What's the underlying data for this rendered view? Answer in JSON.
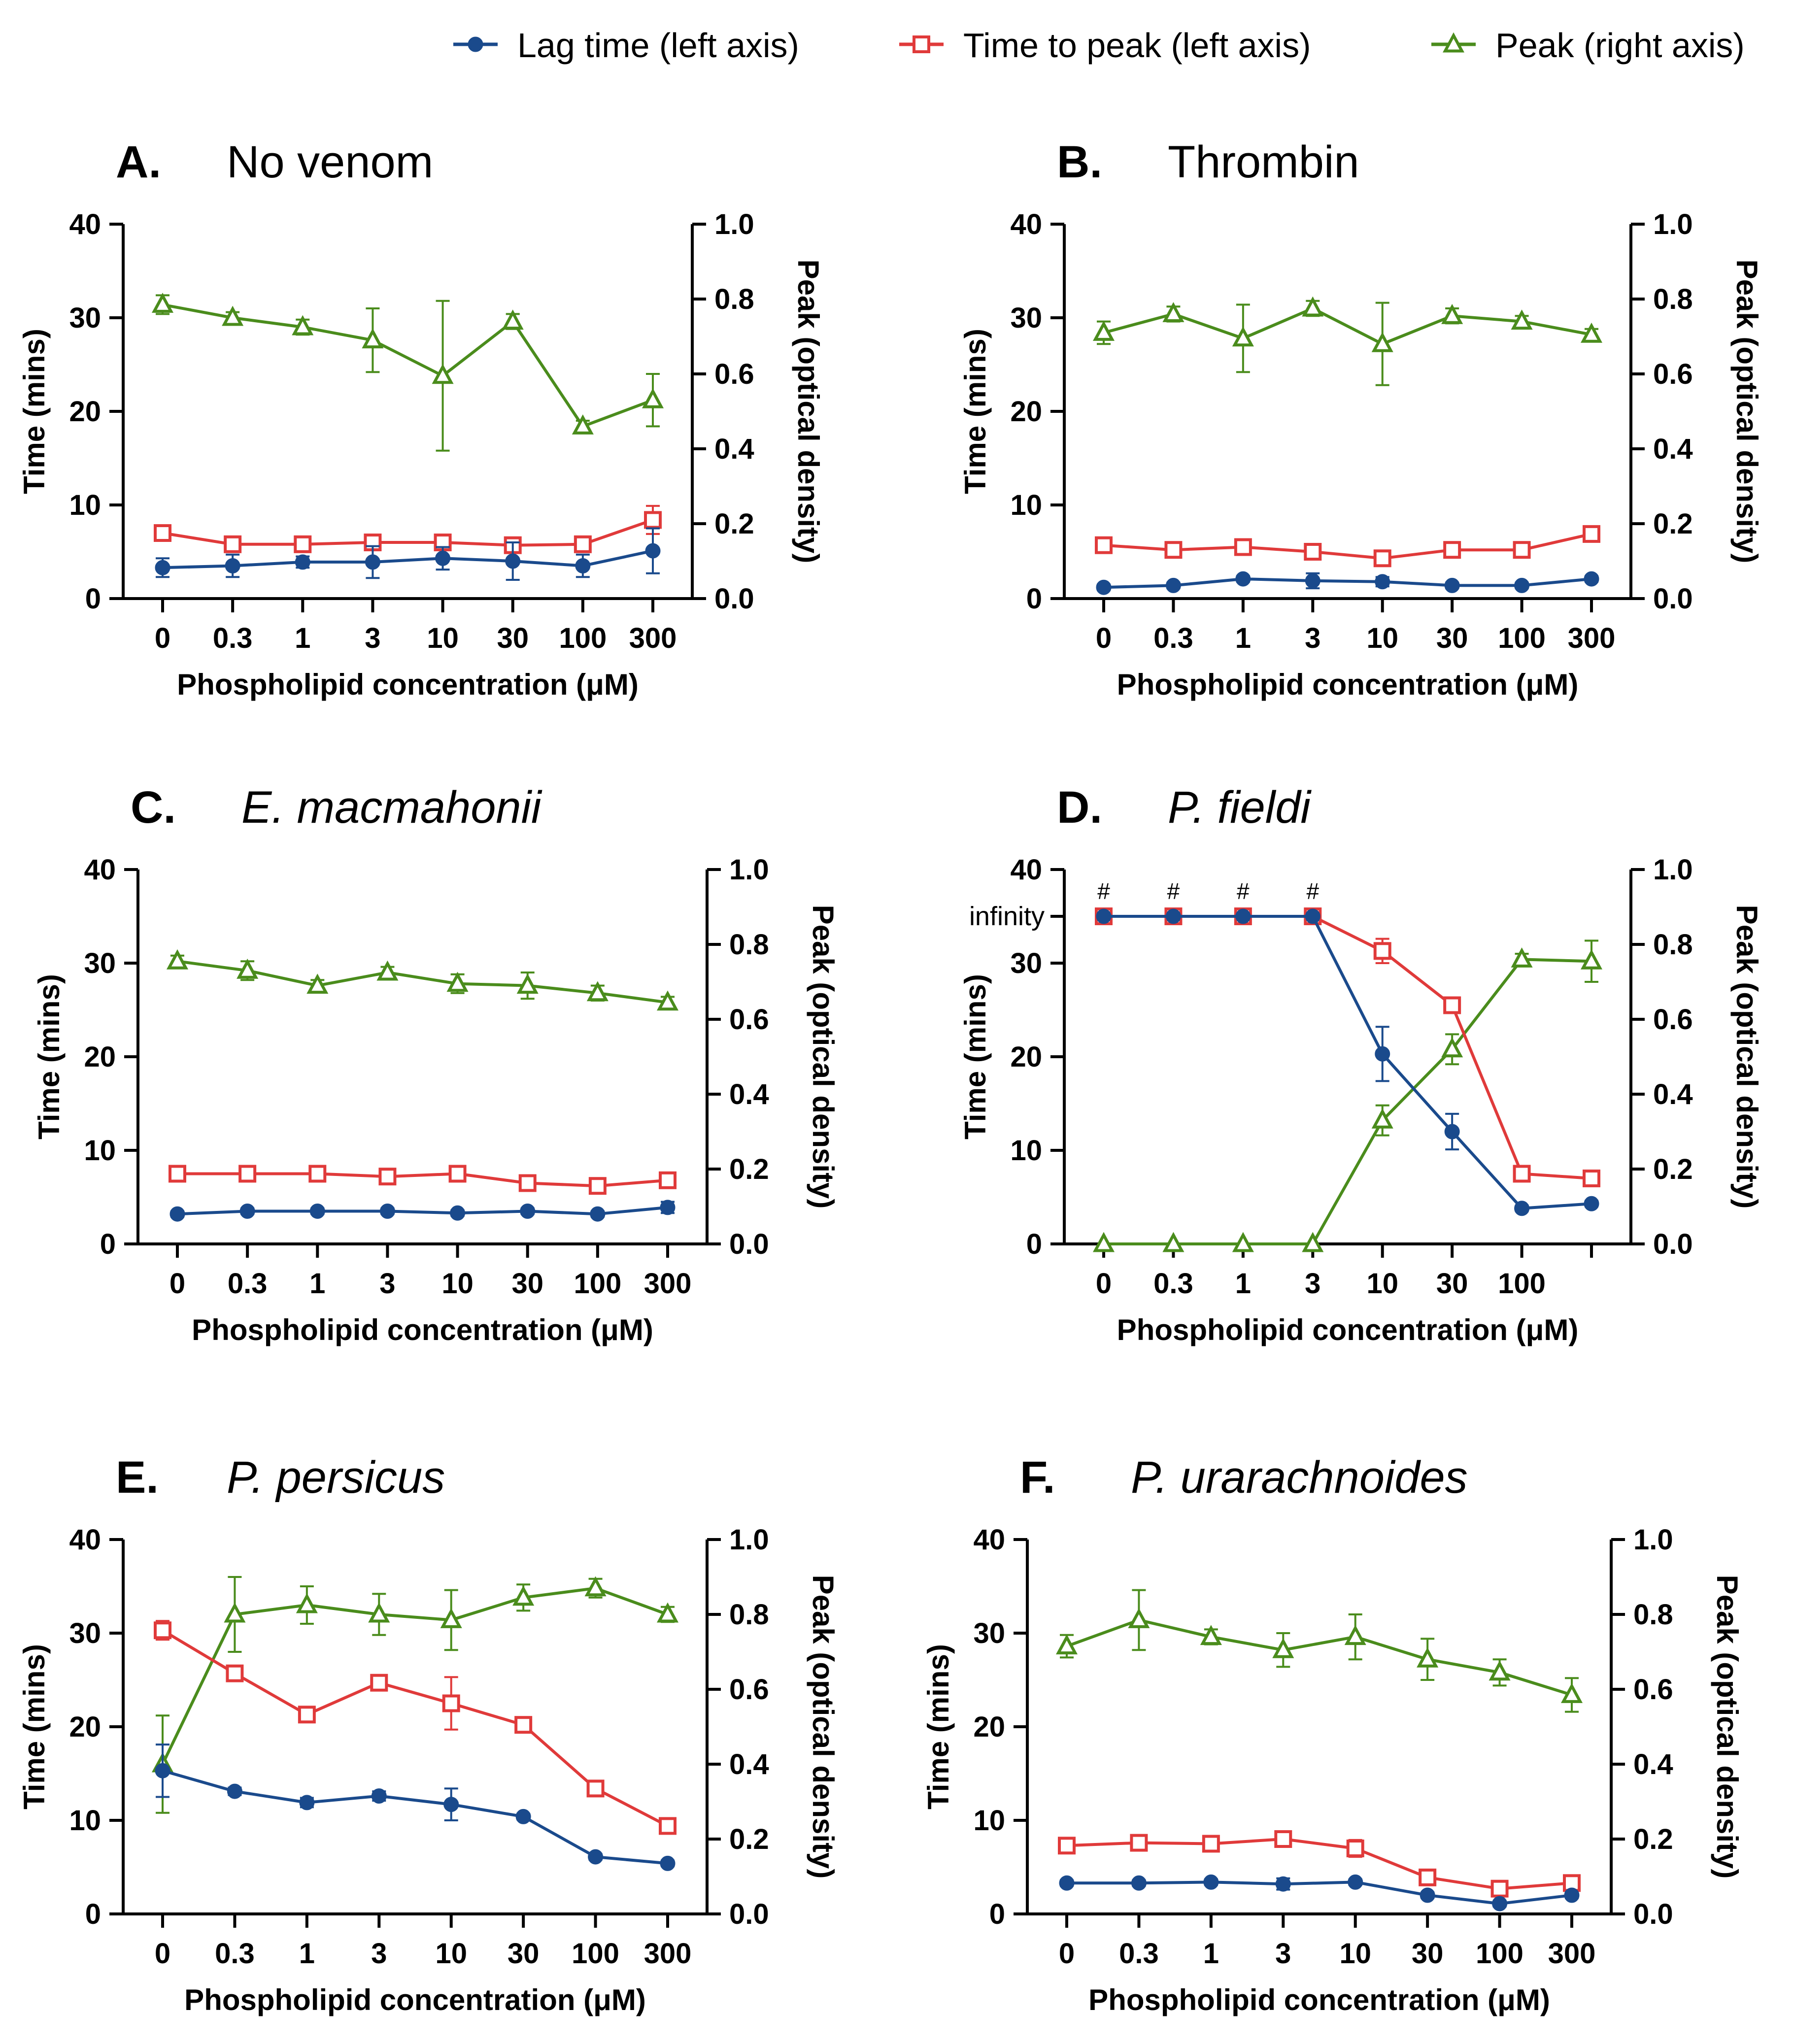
{
  "legend": {
    "items": [
      {
        "name": "Lag time (left axis)",
        "color": "#1a4a8c",
        "marker": "circle"
      },
      {
        "name": "Time to peak (left axis)",
        "color": "#e03a3a",
        "marker": "square"
      },
      {
        "name": "Peak (right axis)",
        "color": "#4a8c1c",
        "marker": "triangle"
      }
    ]
  },
  "colors": {
    "lag": "#1a4a8c",
    "ttp": "#e03a3a",
    "peak": "#4a8c1c",
    "axis": "#000000"
  },
  "shared": {
    "xlabel": "Phospholipid concentration (μM)",
    "ylabel_left": "Time (mins)",
    "ylabel_right": "Peak (optical density)",
    "ylim_left": [
      0,
      40
    ],
    "ylim_right": [
      0,
      1.0
    ],
    "left_ticks": [
      "0",
      "10",
      "20",
      "30",
      "40"
    ],
    "right_ticks": [
      "0.0",
      "0.2",
      "0.4",
      "0.6",
      "0.8",
      "1.0"
    ]
  },
  "chart_data": [
    {
      "type": "line",
      "letter": "A.",
      "title": "No venom",
      "italic": false,
      "categories": [
        "0",
        "0.3",
        "1",
        "3",
        "10",
        "30",
        "100",
        "300"
      ],
      "series": [
        {
          "name": "Lag time (left axis)",
          "axis": "left",
          "values": [
            3.3,
            3.5,
            3.9,
            3.9,
            4.3,
            4.0,
            3.5,
            5.1
          ],
          "errors": [
            1.0,
            1.2,
            0.6,
            1.7,
            1.2,
            2.0,
            1.2,
            2.4
          ]
        },
        {
          "name": "Time to peak (left axis)",
          "axis": "left",
          "values": [
            7.0,
            5.8,
            5.8,
            6.0,
            6.0,
            5.7,
            5.8,
            8.4
          ],
          "errors": [
            0.5,
            0.5,
            0.5,
            0.5,
            0.5,
            0.5,
            0.5,
            1.5
          ]
        },
        {
          "name": "Peak (right axis)",
          "axis": "right",
          "values": [
            0.785,
            0.75,
            0.725,
            0.69,
            0.595,
            0.74,
            0.46,
            0.53
          ],
          "errors": [
            0.025,
            0.015,
            0.02,
            0.085,
            0.2,
            0.02,
            0.015,
            0.07
          ]
        }
      ]
    },
    {
      "type": "line",
      "letter": "B.",
      "title": "Thrombin",
      "italic": false,
      "categories": [
        "0",
        "0.3",
        "1",
        "3",
        "10",
        "30",
        "100",
        "300"
      ],
      "series": [
        {
          "name": "Lag time (left axis)",
          "axis": "left",
          "values": [
            1.2,
            1.4,
            2.1,
            1.9,
            1.8,
            1.4,
            1.4,
            2.1
          ],
          "errors": [
            0.3,
            0.3,
            0.3,
            0.8,
            0.5,
            0.3,
            0.3,
            0.3
          ]
        },
        {
          "name": "Time to peak (left axis)",
          "axis": "left",
          "values": [
            5.7,
            5.2,
            5.5,
            5.0,
            4.3,
            5.2,
            5.2,
            6.9
          ],
          "errors": [
            0.5,
            0.5,
            0.5,
            0.5,
            0.8,
            0.5,
            0.5,
            0.5
          ]
        },
        {
          "name": "Peak (right axis)",
          "axis": "right",
          "values": [
            0.71,
            0.76,
            0.695,
            0.775,
            0.68,
            0.755,
            0.74,
            0.705
          ],
          "errors": [
            0.03,
            0.02,
            0.09,
            0.02,
            0.11,
            0.02,
            0.015,
            0.015
          ]
        }
      ]
    },
    {
      "type": "line",
      "letter": "C.",
      "title": "E. macmahonii",
      "italic": true,
      "categories": [
        "0",
        "0.3",
        "1",
        "3",
        "10",
        "30",
        "100",
        "300"
      ],
      "series": [
        {
          "name": "Lag time (left axis)",
          "axis": "left",
          "values": [
            3.2,
            3.5,
            3.5,
            3.5,
            3.3,
            3.5,
            3.2,
            3.9
          ],
          "errors": [
            0.3,
            0.3,
            0.3,
            0.3,
            0.3,
            0.3,
            0.3,
            0.6
          ]
        },
        {
          "name": "Time to peak (left axis)",
          "axis": "left",
          "values": [
            7.5,
            7.5,
            7.5,
            7.2,
            7.5,
            6.5,
            6.2,
            6.8
          ],
          "errors": [
            0.3,
            0.3,
            0.3,
            0.3,
            0.3,
            0.3,
            0.3,
            0.3
          ]
        },
        {
          "name": "Peak (right axis)",
          "axis": "right",
          "values": [
            0.755,
            0.73,
            0.69,
            0.725,
            0.695,
            0.69,
            0.67,
            0.645
          ],
          "errors": [
            0.015,
            0.025,
            0.015,
            0.015,
            0.025,
            0.035,
            0.02,
            0.015
          ]
        }
      ]
    },
    {
      "type": "line",
      "letter": "D.",
      "title": "P. fieldi",
      "italic": true,
      "categories": [
        "0",
        "0.3",
        "1",
        "3",
        "10",
        "30",
        "100",
        ""
      ],
      "infinity_label": "infinity",
      "infinity_value": 35,
      "hash_marks": [
        "#",
        "#",
        "#",
        "#"
      ],
      "series": [
        {
          "name": "Lag time (left axis)",
          "axis": "left",
          "values": [
            35,
            35,
            35,
            35,
            20.3,
            12.0,
            3.8,
            4.3
          ],
          "errors": [
            0,
            0,
            0,
            0,
            2.9,
            1.9,
            0.3,
            0.3
          ]
        },
        {
          "name": "Time to peak (left axis)",
          "axis": "left",
          "values": [
            35,
            35,
            35,
            35,
            31.3,
            25.5,
            7.5,
            7.0
          ],
          "errors": [
            0,
            0,
            0,
            0,
            1.3,
            0.5,
            0.3,
            0.3
          ]
        },
        {
          "name": "Peak (right axis)",
          "axis": "right",
          "values": [
            0.0,
            0.0,
            0.0,
            0.0,
            0.33,
            0.52,
            0.76,
            0.755
          ],
          "errors": [
            0,
            0,
            0,
            0,
            0.04,
            0.04,
            0.015,
            0.055
          ]
        }
      ]
    },
    {
      "type": "line",
      "letter": "E.",
      "title": "P. persicus",
      "italic": true,
      "categories": [
        "0",
        "0.3",
        "1",
        "3",
        "10",
        "30",
        "100",
        "300"
      ],
      "series": [
        {
          "name": "Lag time (left axis)",
          "axis": "left",
          "values": [
            15.3,
            13.1,
            11.9,
            12.6,
            11.7,
            10.4,
            6.1,
            5.4
          ],
          "errors": [
            2.8,
            0.4,
            0.5,
            0.5,
            1.7,
            0.3,
            0.3,
            0.3
          ]
        },
        {
          "name": "Time to peak (left axis)",
          "axis": "left",
          "values": [
            30.3,
            25.7,
            21.3,
            24.7,
            22.5,
            20.2,
            13.4,
            9.4
          ],
          "errors": [
            1.0,
            0.5,
            0.5,
            0.5,
            2.8,
            0.5,
            0.5,
            0.5
          ]
        },
        {
          "name": "Peak (right axis)",
          "axis": "right",
          "values": [
            0.4,
            0.8,
            0.825,
            0.8,
            0.785,
            0.845,
            0.87,
            0.8
          ],
          "errors": [
            0.13,
            0.1,
            0.05,
            0.055,
            0.08,
            0.035,
            0.025,
            0.02
          ]
        }
      ]
    },
    {
      "type": "line",
      "letter": "F.",
      "title": "P. urarachnoides",
      "italic": true,
      "categories": [
        "0",
        "0.3",
        "1",
        "3",
        "10",
        "30",
        "100",
        "300"
      ],
      "series": [
        {
          "name": "Lag time (left axis)",
          "axis": "left",
          "values": [
            3.3,
            3.3,
            3.4,
            3.2,
            3.4,
            2.0,
            1.1,
            2.0
          ],
          "errors": [
            0.3,
            0.3,
            0.3,
            0.6,
            0.3,
            0.3,
            0.3,
            0.3
          ]
        },
        {
          "name": "Time to peak (left axis)",
          "axis": "left",
          "values": [
            7.3,
            7.6,
            7.5,
            8.0,
            7.0,
            3.9,
            2.7,
            3.3
          ],
          "errors": [
            0.5,
            0.5,
            0.5,
            0.5,
            0.9,
            0.5,
            0.5,
            0.5
          ]
        },
        {
          "name": "Peak (right axis)",
          "axis": "right",
          "values": [
            0.715,
            0.785,
            0.74,
            0.705,
            0.74,
            0.68,
            0.645,
            0.585
          ],
          "errors": [
            0.03,
            0.08,
            0.02,
            0.045,
            0.06,
            0.055,
            0.035,
            0.045
          ]
        }
      ]
    }
  ]
}
